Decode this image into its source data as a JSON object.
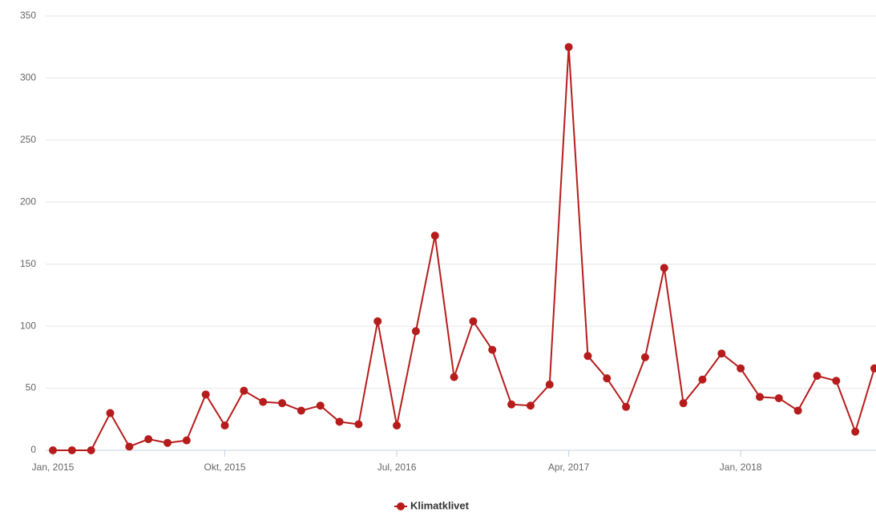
{
  "chart_data": {
    "type": "line",
    "categories": [
      "Jan, 2015",
      null,
      null,
      null,
      null,
      null,
      null,
      null,
      null,
      "Okt, 2015",
      null,
      null,
      null,
      null,
      null,
      null,
      null,
      null,
      "Jul, 2016",
      null,
      null,
      null,
      null,
      null,
      null,
      null,
      null,
      "Apr, 2017",
      null,
      null,
      null,
      null,
      null,
      null,
      null,
      null,
      "Jan, 2018",
      null,
      null,
      null,
      null,
      null,
      null,
      null
    ],
    "series": [
      {
        "name": "Klimatklivet",
        "color": "#b71c1c",
        "values": [
          0,
          0,
          0,
          30,
          3,
          9,
          6,
          8,
          45,
          20,
          48,
          39,
          38,
          32,
          36,
          23,
          21,
          104,
          20,
          96,
          173,
          59,
          104,
          81,
          37,
          36,
          53,
          325,
          76,
          58,
          35,
          75,
          147,
          38,
          57,
          78,
          66,
          43,
          42,
          32,
          60,
          56,
          15,
          66
        ]
      }
    ],
    "ylim": [
      0,
      350
    ],
    "yticks": [
      0,
      50,
      100,
      150,
      200,
      250,
      300,
      350
    ],
    "grid": true,
    "legend": "bottom"
  }
}
